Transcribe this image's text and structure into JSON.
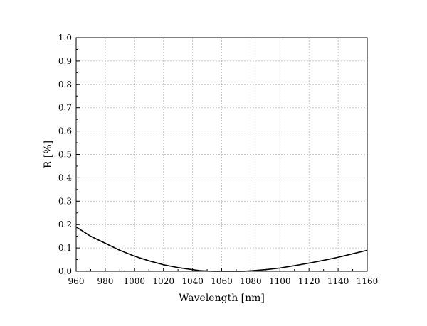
{
  "chart_data": {
    "type": "line",
    "title": "",
    "xlabel": "Wavelength [nm]",
    "ylabel": "R [%]",
    "xlim": [
      960,
      1160
    ],
    "ylim": [
      0.0,
      1.0
    ],
    "grid": true,
    "x_ticks": [
      "960",
      "980",
      "1000",
      "1020",
      "1040",
      "1060",
      "1080",
      "1100",
      "1120",
      "1140",
      "1160"
    ],
    "y_ticks": [
      "0.0",
      "0.1",
      "0.2",
      "0.3",
      "0.4",
      "0.5",
      "0.6",
      "0.7",
      "0.8",
      "0.9",
      "1.0"
    ],
    "series": [
      {
        "name": "R",
        "color": "#000000",
        "x": [
          960,
          970,
          980,
          990,
          1000,
          1010,
          1020,
          1030,
          1040,
          1045,
          1050,
          1055,
          1060,
          1065,
          1070,
          1075,
          1080,
          1090,
          1100,
          1110,
          1120,
          1130,
          1140,
          1150,
          1160
        ],
        "y": [
          0.19,
          0.15,
          0.12,
          0.09,
          0.065,
          0.045,
          0.028,
          0.016,
          0.007,
          0.003,
          0.001,
          0.0,
          0.0,
          0.0,
          0.0,
          0.0,
          0.002,
          0.007,
          0.014,
          0.024,
          0.035,
          0.047,
          0.06,
          0.075,
          0.09
        ]
      }
    ]
  }
}
